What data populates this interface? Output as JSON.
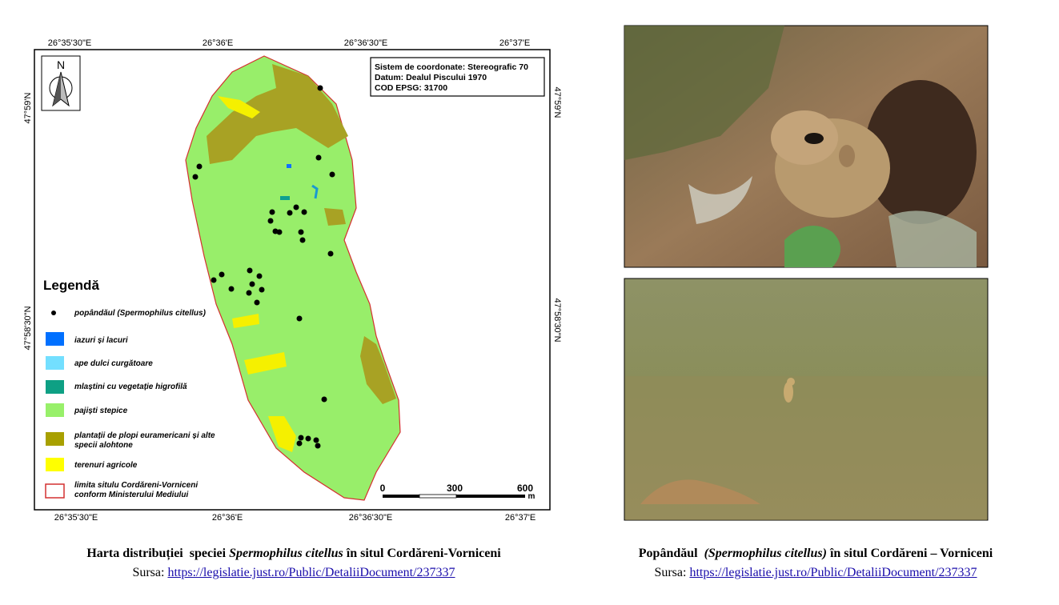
{
  "map": {
    "top_labels": [
      "26°35'30\"E",
      "26°36'E",
      "26°36'30\"E",
      "26°37'E"
    ],
    "bottom_labels": [
      "26°35'30\"E",
      "26°36'E",
      "26°36'30\"E",
      "26°37'E"
    ],
    "left_labels": [
      "47°59'N",
      "47°58'30\"N"
    ],
    "right_labels": [
      "47°59'N",
      "47°58'30\"N"
    ],
    "north": "N",
    "info": [
      "Sistem de coordonate: Stereografic 70",
      "Datum: Dealul Piscului 1970",
      "COD EPSG: 31700"
    ],
    "legend_title": "Legendă",
    "legend": [
      "popândăul (Spermophilus citellus)",
      "iazuri și lacuri",
      "ape dulci curgătoare",
      "mlaștini cu vegetație higrofilă",
      "pajiști stepice",
      "plantații de plopi euramericani și alte",
      "specii alohtone",
      "terenuri agricole",
      "limita situlu Cordăreni-Vorniceni",
      "conform Ministerului Mediului"
    ],
    "scale": [
      "0",
      "300",
      "600",
      "m"
    ]
  },
  "captions": [
    {
      "before": "Harta distribuției  speciei ",
      "italic": "Spermophilus citellus",
      "after": " în situl Cordăreni-Vorniceni",
      "source_label": "Sursa: ",
      "link": "https://legislatie.just.ro/Public/DetaliiDocument/237337"
    },
    {
      "before": "Popândăul  ",
      "italic": "(Spermophilus citellus)",
      "after": " în situl Cordăreni – Vorniceni",
      "source_label": "Sursa: ",
      "link": "https://legislatie.just.ro/Public/DetaliiDocument/237337"
    }
  ]
}
